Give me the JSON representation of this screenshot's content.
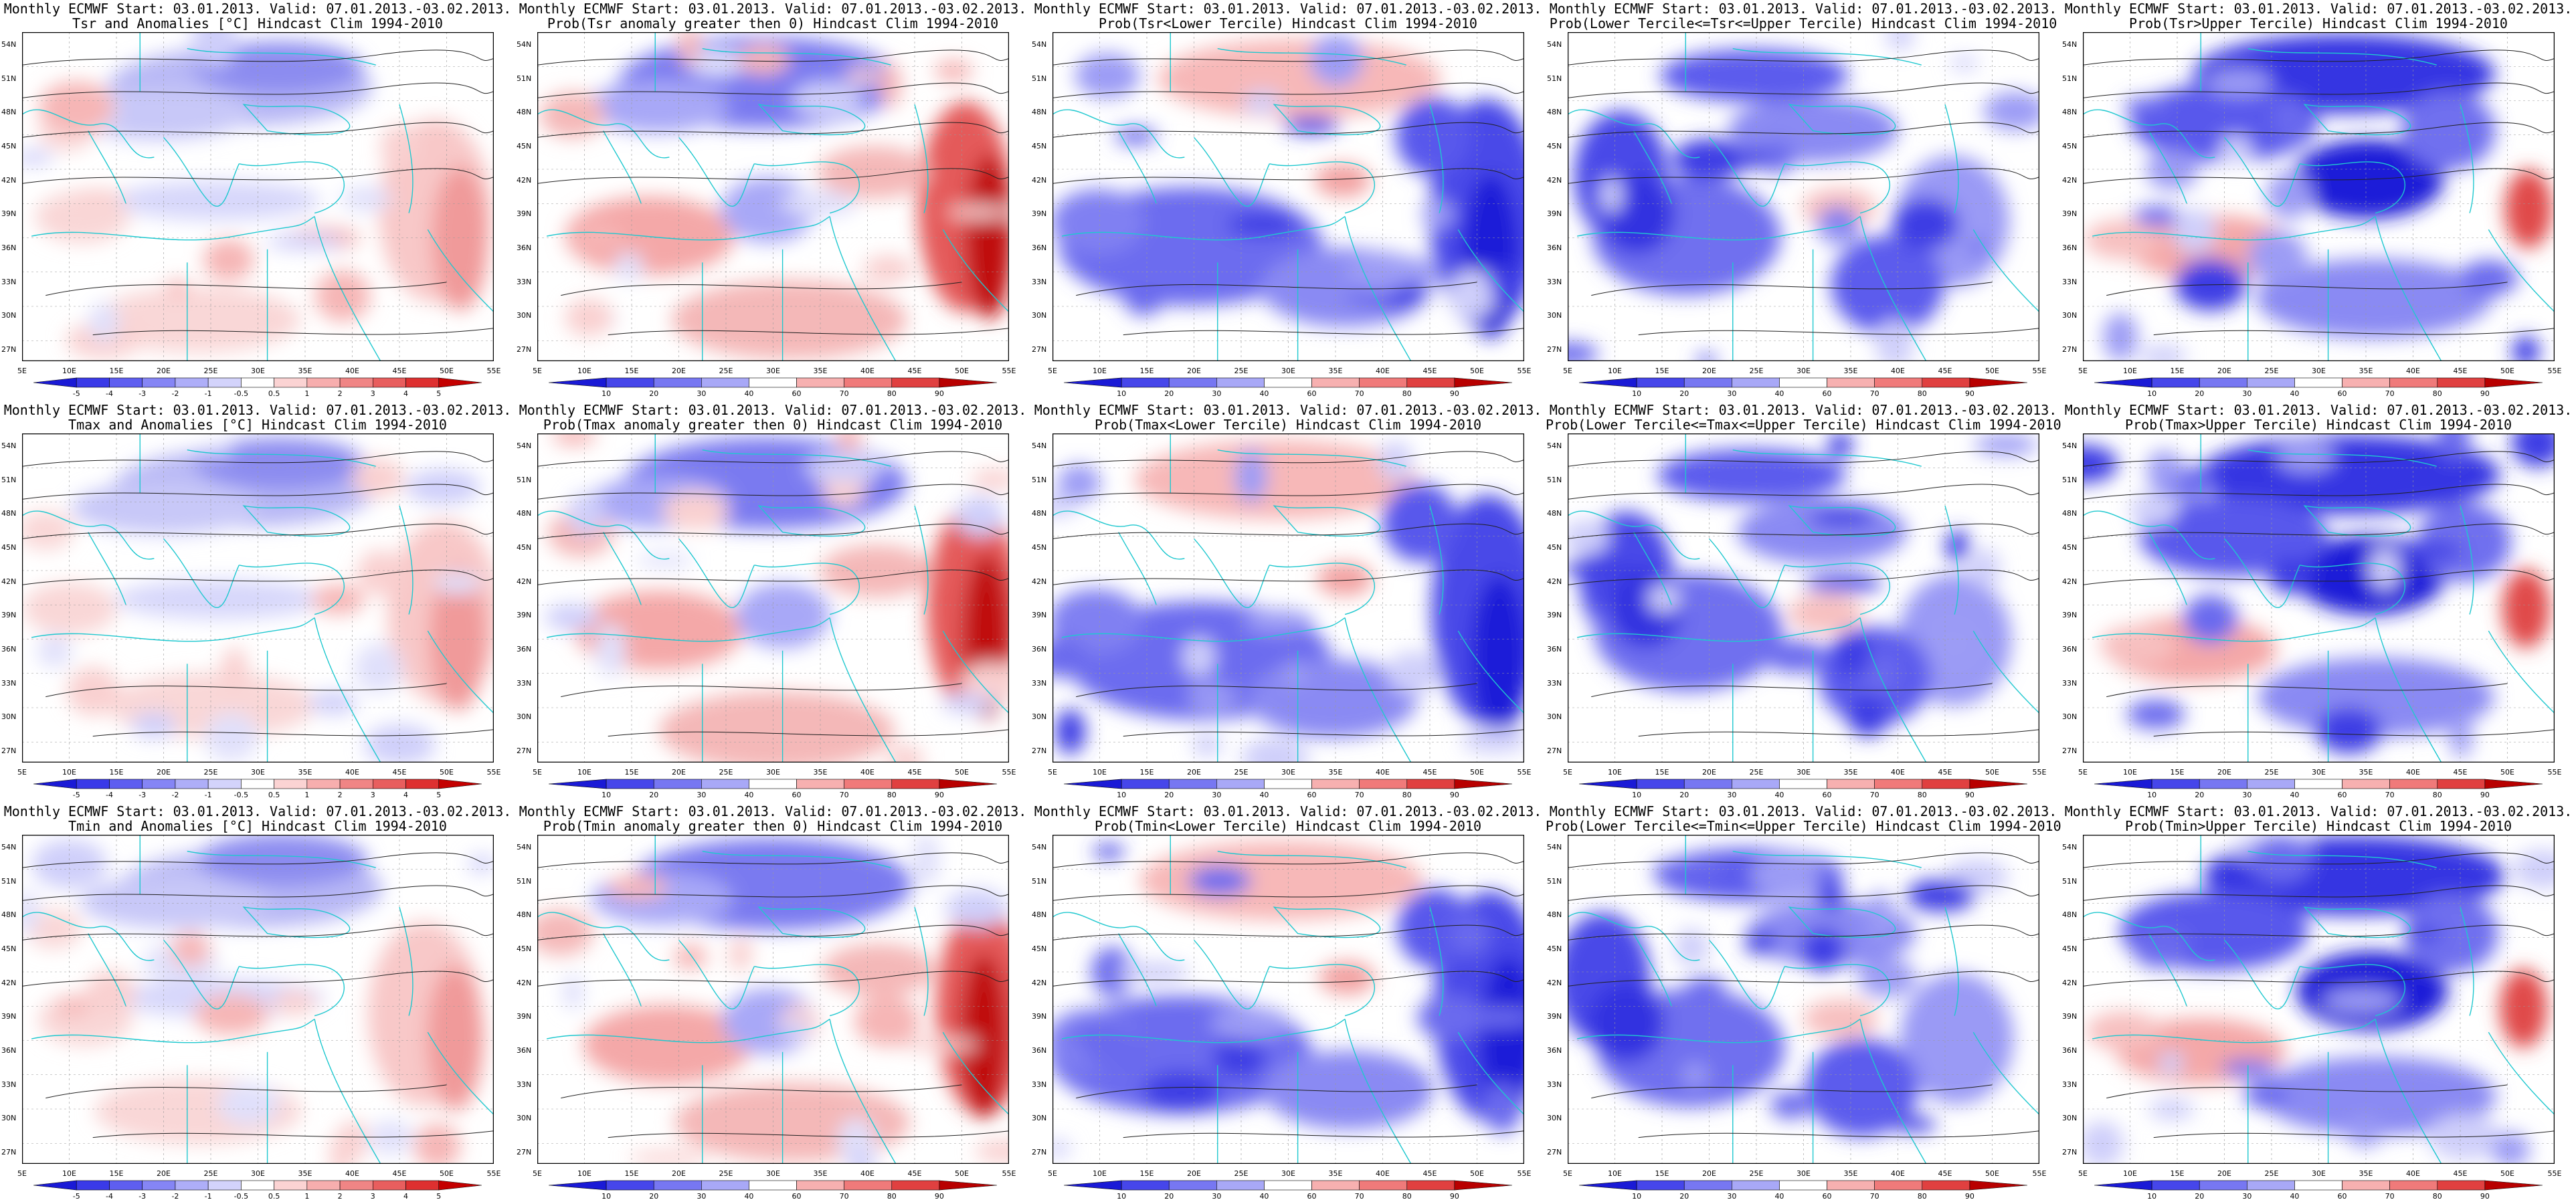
{
  "header": {
    "line1": "Monthly ECMWF Start: 03.01.2013. Valid: 07.01.2013.-03.02.2013."
  },
  "axes": {
    "lat_labels": [
      "54N",
      "51N",
      "48N",
      "45N",
      "42N",
      "39N",
      "36N",
      "33N",
      "30N",
      "27N"
    ],
    "lon_labels": [
      "5E",
      "10E",
      "15E",
      "20E",
      "25E",
      "30E",
      "35E",
      "40E",
      "45E",
      "50E",
      "55E"
    ]
  },
  "colorbars": {
    "anomaly": {
      "labels": [
        "-5",
        "-4",
        "-3",
        "-2",
        "-1",
        "-0.5",
        "0.5",
        "1",
        "2",
        "3",
        "4",
        "5"
      ],
      "colors": [
        "#1a1ad6",
        "#3a3ae8",
        "#5e5ef0",
        "#8585f5",
        "#aeaef8",
        "#d3d3fb",
        "#ffffff",
        "#fbd3d3",
        "#f7aeae",
        "#f08585",
        "#e85e5e",
        "#de3030",
        "#c40000"
      ]
    },
    "prob": {
      "labels": [
        "10",
        "20",
        "30",
        "40",
        "60",
        "70",
        "80",
        "90"
      ],
      "colors": [
        "#1a1ad6",
        "#4646ea",
        "#7777f2",
        "#a8a8f7",
        "#ffffff",
        "#f7b0b0",
        "#f07a7a",
        "#e04040",
        "#b80000"
      ]
    }
  },
  "panels": [
    {
      "title": "Tsr and Anomalies [°C] Hindcast Clim 1994-2010",
      "kind": "anomaly"
    },
    {
      "title": "Prob(Tsr anomaly greater then 0) Hindcast Clim 1994-2010",
      "kind": "prob"
    },
    {
      "title": "Prob(Tsr<Lower Tercile) Hindcast Clim 1994-2010",
      "kind": "prob"
    },
    {
      "title": "Prob(Lower Tercile<=Tsr<=Upper Tercile) Hindcast Clim 1994-2010",
      "kind": "prob"
    },
    {
      "title": "Prob(Tsr>Upper Tercile) Hindcast Clim 1994-2010",
      "kind": "prob"
    },
    {
      "title": "Tmax and Anomalies [°C] Hindcast Clim 1994-2010",
      "kind": "anomaly"
    },
    {
      "title": "Prob(Tmax anomaly greater then 0) Hindcast Clim 1994-2010",
      "kind": "prob"
    },
    {
      "title": "Prob(Tmax<Lower Tercile) Hindcast Clim 1994-2010",
      "kind": "prob"
    },
    {
      "title": "Prob(Lower Tercile<=Tmax<=Upper Tercile) Hindcast Clim 1994-2010",
      "kind": "prob"
    },
    {
      "title": "Prob(Tmax>Upper Tercile) Hindcast Clim 1994-2010",
      "kind": "prob"
    },
    {
      "title": "Tmin and Anomalies [°C] Hindcast Clim 1994-2010",
      "kind": "anomaly"
    },
    {
      "title": "Prob(Tmin anomaly greater then 0) Hindcast Clim 1994-2010",
      "kind": "prob"
    },
    {
      "title": "Prob(Tmin<Lower Tercile) Hindcast Clim 1994-2010",
      "kind": "prob"
    },
    {
      "title": "Prob(Lower Tercile<=Tmin<=Upper Tercile) Hindcast Clim 1994-2010",
      "kind": "prob"
    },
    {
      "title": "Prob(Tmin>Upper Tercile) Hindcast Clim 1994-2010",
      "kind": "prob"
    }
  ]
}
